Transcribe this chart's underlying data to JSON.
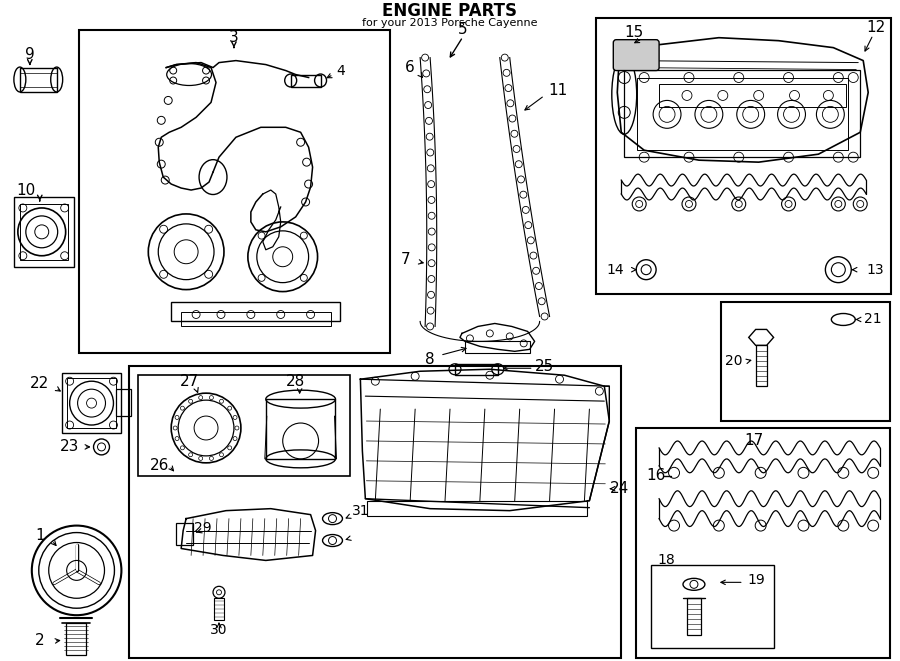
{
  "title": "ENGINE PARTS",
  "subtitle": "for your 2013 Porsche Cayenne",
  "bg_color": "#ffffff",
  "fig_width": 9.0,
  "fig_height": 6.61,
  "dpi": 100
}
